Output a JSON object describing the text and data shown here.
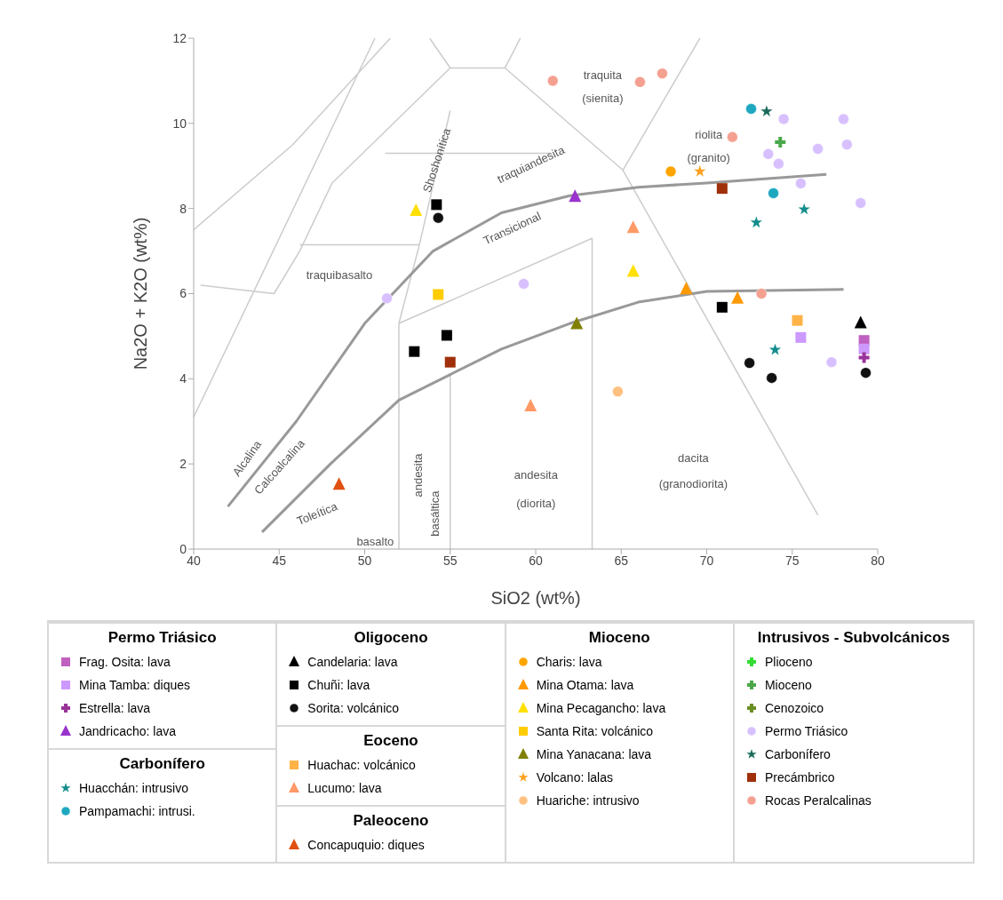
{
  "chart_data": {
    "type": "scatter",
    "xlabel": "SiO2 (wt%)",
    "ylabel": "Na2O + K2O (wt%)",
    "xlim": [
      40,
      80
    ],
    "xticks": [
      40,
      45,
      50,
      55,
      60,
      65,
      70,
      75,
      80
    ],
    "ylim": [
      0,
      12
    ],
    "yticks": [
      0,
      2,
      4,
      6,
      8,
      10,
      12
    ],
    "grid": false,
    "legend": "bottom",
    "annotations": [
      "Permo Triásico",
      "Carbonífero",
      "Oligoceno",
      "Eoceno",
      "Paleoceno",
      "Mioceno",
      "Intrusivos - Subvolcánicos",
      "traquita",
      "(sienita)",
      "riolita",
      "(granito)",
      "dacita",
      "(granodiorita)",
      "andesita",
      "(diorita)",
      "basalto",
      "andesita",
      "basáltica",
      "traquibasalto",
      "Shoshonítica",
      "traquiandesita",
      "Transicional",
      "Alcalina",
      "Calcoalcalina",
      "Toleítica"
    ],
    "series": [
      {
        "type": "line",
        "color": "#cccccc",
        "x": [
          40,
          50.6,
          null,
          40,
          45.8,
          51.5,
          null,
          53.8,
          55,
          58.2,
          59.1,
          null,
          58.2,
          65.1,
          76.5,
          null,
          65.1,
          69.6,
          null,
          55,
          48.1,
          46.2,
          44.7,
          40.4,
          null,
          46.2,
          53.2,
          52,
          52,
          null,
          53.2,
          55,
          null,
          51.2,
          60.9,
          null,
          52,
          63.3,
          63.3,
          null,
          55,
          55
        ],
        "values": [
          3.1,
          12,
          null,
          7.5,
          9.5,
          12,
          null,
          12,
          11.3,
          11.3,
          12,
          null,
          11.3,
          8.9,
          0.8,
          null,
          8.9,
          12,
          null,
          11.3,
          8.6,
          7,
          6,
          6.2,
          null,
          7.15,
          7.15,
          5.3,
          0,
          null,
          7.15,
          10.3,
          null,
          9.3,
          9.3,
          null,
          5.3,
          7.3,
          0,
          null,
          4.1,
          0
        ]
      },
      {
        "type": "line",
        "color": "#999999",
        "x": [
          42,
          46,
          50,
          54,
          58,
          62,
          66,
          70,
          77
        ],
        "values": [
          1,
          3,
          5.3,
          7,
          7.9,
          8.3,
          8.5,
          8.6,
          8.8
        ]
      },
      {
        "type": "line",
        "color": "#999999",
        "x": [
          44,
          48,
          52,
          55,
          58,
          62,
          66,
          70,
          78
        ],
        "values": [
          0.4,
          2,
          3.5,
          4.1,
          4.7,
          5.3,
          5.8,
          6.05,
          6.1
        ]
      },
      {
        "name": "Frag. Osita: lava",
        "color": "#c060c0",
        "marker": "square",
        "x": [
          79.2
        ],
        "values": [
          4.9
        ]
      },
      {
        "name": "Mina Tamba: diques",
        "color": "#cc99ff",
        "marker": "square",
        "x": [
          75.5,
          79.2
        ],
        "values": [
          4.97,
          4.7
        ]
      },
      {
        "name": "Estrella: lava",
        "color": "#993399",
        "marker": "cross",
        "x": [
          79.2
        ],
        "values": [
          4.5
        ]
      },
      {
        "name": "Jandricacho: lava",
        "color": "#9933cc",
        "marker": "triangle",
        "x": [
          62.3
        ],
        "values": [
          8.28
        ]
      },
      {
        "name": "Huacchán: intrusivo",
        "color": "#138c8c",
        "marker": "star",
        "x": [
          75.7,
          72.9,
          74
        ],
        "values": [
          7.98,
          7.67,
          4.68
        ]
      },
      {
        "name": "Pampamachi: intrusi.",
        "color": "#1ea8c0",
        "marker": "circle",
        "x": [
          72.6,
          73.9
        ],
        "values": [
          10.34,
          8.36
        ]
      },
      {
        "name": "Candelaria: lava",
        "color": "#000000",
        "marker": "triangle",
        "x": [
          79
        ],
        "values": [
          5.31
        ]
      },
      {
        "name": "Chuñi: lava",
        "color": "#000000",
        "marker": "square",
        "x": [
          54.2,
          52.9,
          54.8,
          70.9
        ],
        "values": [
          8.09,
          4.64,
          5.02,
          5.68
        ]
      },
      {
        "name": "Sorita: volcánico",
        "color": "#111111",
        "marker": "circle",
        "x": [
          54.3,
          72.5,
          73.8,
          79.3
        ],
        "values": [
          7.78,
          4.37,
          4.02,
          4.14
        ]
      },
      {
        "name": "Huachac: volcánico",
        "color": "#ffb347",
        "marker": "square",
        "x": [
          75.3
        ],
        "values": [
          5.37
        ]
      },
      {
        "name": "Lucumo: lava",
        "color": "#ff9966",
        "marker": "triangle",
        "x": [
          65.7,
          59.7
        ],
        "values": [
          7.55,
          3.36
        ]
      },
      {
        "name": "Concapuquio: diques",
        "color": "#e05010",
        "marker": "triangle",
        "x": [
          48.5
        ],
        "values": [
          1.52
        ]
      },
      {
        "name": "Charis: lava",
        "color": "#ffa500",
        "marker": "circle",
        "x": [
          67.9
        ],
        "values": [
          8.87
        ]
      },
      {
        "name": "Mina Otama: lava",
        "color": "#ff9900",
        "marker": "triangle",
        "x": [
          68.8,
          71.8
        ],
        "values": [
          6.11,
          5.89
        ]
      },
      {
        "name": "Mina Pecagancho: lava",
        "color": "#ffe000",
        "marker": "triangle",
        "x": [
          53,
          65.7
        ],
        "values": [
          7.95,
          6.52
        ]
      },
      {
        "name": "Santa Rita: volcánico",
        "color": "#ffcc00",
        "marker": "square",
        "x": [
          54.3
        ],
        "values": [
          5.98
        ]
      },
      {
        "name": "Mina Yanacana: lava",
        "color": "#808000",
        "marker": "triangle",
        "x": [
          62.4
        ],
        "values": [
          5.29
        ]
      },
      {
        "name": "Volcano: lalas",
        "color": "#ffa020",
        "marker": "star",
        "x": [
          69.6
        ],
        "values": [
          8.87
        ]
      },
      {
        "name": "Huariche: intrusivo",
        "color": "#ffc080",
        "marker": "circle",
        "x": [
          64.8
        ],
        "values": [
          3.7
        ]
      },
      {
        "name": "Plioceno",
        "color": "#33dd33",
        "marker": "cross"
      },
      {
        "name": "Mioceno",
        "color": "#4aa84a",
        "marker": "cross",
        "x": [
          74.3
        ],
        "values": [
          9.56
        ]
      },
      {
        "name": "Cenozoico",
        "color": "#6b8e23",
        "marker": "cross"
      },
      {
        "name": "Permo Triásico",
        "color": "#d8c0ff",
        "marker": "circle",
        "x": [
          51.3,
          59.3,
          74.5,
          76.5,
          78,
          78.2,
          73.6,
          74.2,
          75.5,
          79,
          77.3
        ],
        "values": [
          5.89,
          6.23,
          10.1,
          9.4,
          10.1,
          9.5,
          9.28,
          9.05,
          8.59,
          8.13,
          4.39
        ]
      },
      {
        "name": "Carbonífero",
        "color": "#1a6b5a",
        "marker": "star",
        "x": [
          73.5
        ],
        "values": [
          10.28
        ]
      },
      {
        "name": "Precámbrico",
        "color": "#a0300a",
        "marker": "square",
        "x": [
          70.9,
          55
        ],
        "values": [
          8.47,
          4.39
        ]
      },
      {
        "name": "Rocas Peralcalinas",
        "color": "#f4a090",
        "marker": "circle",
        "x": [
          61,
          66.1,
          67.4,
          71.5,
          73.2
        ],
        "values": [
          11,
          10.97,
          11.17,
          9.68,
          6
        ]
      }
    ]
  }
}
